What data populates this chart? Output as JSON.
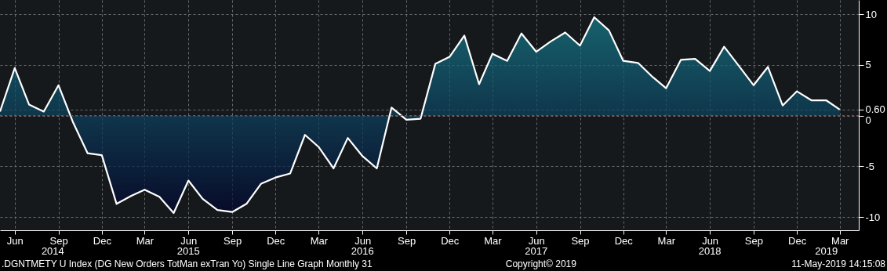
{
  "chart_data": {
    "type": "area",
    "x": [
      "2014-05",
      "2014-06",
      "2014-07",
      "2014-08",
      "2014-09",
      "2014-10",
      "2014-11",
      "2014-12",
      "2015-01",
      "2015-02",
      "2015-03",
      "2015-04",
      "2015-05",
      "2015-06",
      "2015-07",
      "2015-08",
      "2015-09",
      "2015-10",
      "2015-11",
      "2015-12",
      "2016-01",
      "2016-02",
      "2016-03",
      "2016-04",
      "2016-05",
      "2016-06",
      "2016-07",
      "2016-08",
      "2016-09",
      "2016-10",
      "2016-11",
      "2016-12",
      "2017-01",
      "2017-02",
      "2017-03",
      "2017-04",
      "2017-05",
      "2017-06",
      "2017-07",
      "2017-08",
      "2017-09",
      "2017-10",
      "2017-11",
      "2017-12",
      "2018-01",
      "2018-02",
      "2018-03",
      "2018-04",
      "2018-05",
      "2018-06",
      "2018-07",
      "2018-08",
      "2018-09",
      "2018-10",
      "2018-11",
      "2018-12",
      "2019-01",
      "2019-02",
      "2019-03"
    ],
    "series": [
      {
        "color": "#ffffff",
        "values": [
          0.4,
          4.7,
          1.1,
          0.4,
          3.0,
          -0.6,
          -3.7,
          -3.9,
          -8.7,
          -7.9,
          -7.3,
          -8.0,
          -9.6,
          -6.4,
          -8.2,
          -9.3,
          -9.5,
          -8.7,
          -6.7,
          -6.1,
          -5.7,
          -1.9,
          -3.1,
          -5.2,
          -2.2,
          -4.0,
          -5.2,
          0.8,
          -0.4,
          -0.3,
          5.1,
          5.8,
          7.9,
          3.1,
          6.1,
          5.4,
          8.1,
          6.3,
          7.3,
          8.2,
          6.9,
          9.7,
          8.4,
          5.4,
          5.2,
          3.8,
          2.7,
          5.5,
          5.6,
          4.4,
          6.8,
          4.9,
          3.0,
          4.8,
          1.0,
          2.4,
          1.5,
          1.5,
          0.6
        ]
      }
    ],
    "xlim": [
      "2014-05-01",
      "2019-04-10"
    ],
    "xticks": [
      {
        "value": "2014-06",
        "label": "Jun"
      },
      {
        "value": "2014-09",
        "label": "Sep"
      },
      {
        "value": "2014-12",
        "label": "Dec"
      },
      {
        "value": "2015-03",
        "label": "Mar"
      },
      {
        "value": "2015-06",
        "label": "Jun"
      },
      {
        "value": "2015-09",
        "label": "Sep"
      },
      {
        "value": "2015-12",
        "label": "Dec"
      },
      {
        "value": "2016-03",
        "label": "Mar"
      },
      {
        "value": "2016-06",
        "label": "Jun"
      },
      {
        "value": "2016-09",
        "label": "Sep"
      },
      {
        "value": "2016-12",
        "label": "Dec"
      },
      {
        "value": "2017-03",
        "label": "Mar"
      },
      {
        "value": "2017-06",
        "label": "Jun"
      },
      {
        "value": "2017-09",
        "label": "Sep"
      },
      {
        "value": "2017-12",
        "label": "Dec"
      },
      {
        "value": "2018-03",
        "label": "Mar"
      },
      {
        "value": "2018-06",
        "label": "Jun"
      },
      {
        "value": "2018-09",
        "label": "Sep"
      },
      {
        "value": "2018-12",
        "label": "Dec"
      },
      {
        "value": "2019-03",
        "label": "Mar"
      }
    ],
    "x2lim": [
      "2014-05-01",
      "2019-04-10"
    ],
    "x2ticks": [
      {
        "value": "2014-08-20",
        "label": "2014"
      },
      {
        "value": "2015-06-01",
        "label": "2015"
      },
      {
        "value": "2016-06-01",
        "label": "2016"
      },
      {
        "value": "2017-06-01",
        "label": "2017"
      },
      {
        "value": "2018-06-01",
        "label": "2018"
      },
      {
        "value": "2019-02-01",
        "label": "2019"
      }
    ],
    "ylim": [
      -11.3,
      11.4
    ],
    "yticks": [
      -10,
      -5,
      0,
      {
        "value": 0.6,
        "label": "0.60"
      },
      5,
      10
    ],
    "grid": true,
    "ref_lines": [
      {
        "axis": "y",
        "value": 0,
        "color": "#ff2a2a",
        "line_style": "dashed"
      }
    ],
    "annotations": [
      ".DGNTMETY U Index (DG New Orders TotMan exTran Yo) Single Line Graph  Monthly 31",
      "Copyright© 2019",
      "11-May-2019 14:15:08"
    ]
  }
}
